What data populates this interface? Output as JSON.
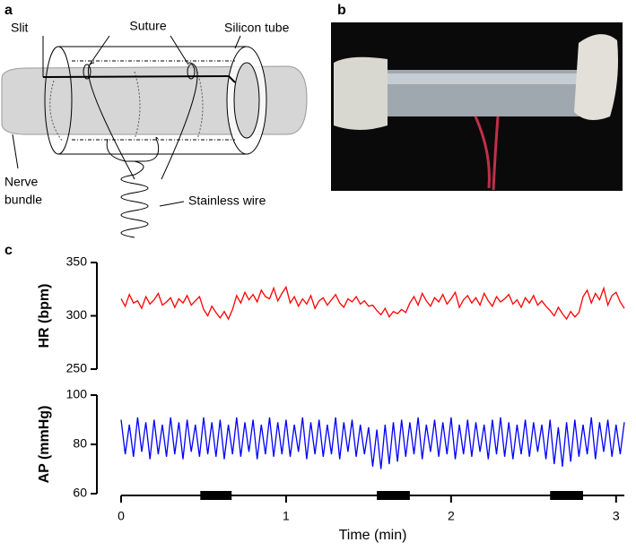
{
  "panels": {
    "a": {
      "label": "a",
      "labels": {
        "slit": "Slit",
        "suture": "Suture",
        "silicon_tube": "Silicon tube",
        "nerve_bundle": [
          "Nerve",
          "bundle"
        ],
        "stainless_wire": "Stainless wire"
      }
    },
    "b": {
      "label": "b"
    },
    "c": {
      "label": "c"
    }
  },
  "chart_data": [
    {
      "type": "line",
      "ylabel": "HR (bpm)",
      "color": "#ff0000",
      "ylim": [
        250,
        350
      ],
      "yticks": [
        250,
        300,
        350
      ],
      "xlim": [
        0,
        3.05
      ],
      "x": [
        0,
        0.025,
        0.05,
        0.075,
        0.1,
        0.125,
        0.15,
        0.175,
        0.2,
        0.225,
        0.25,
        0.275,
        0.3,
        0.325,
        0.35,
        0.375,
        0.4,
        0.425,
        0.45,
        0.475,
        0.5,
        0.525,
        0.55,
        0.575,
        0.6,
        0.625,
        0.65,
        0.675,
        0.7,
        0.725,
        0.75,
        0.775,
        0.8,
        0.825,
        0.85,
        0.875,
        0.9,
        0.925,
        0.95,
        0.975,
        1,
        1.025,
        1.05,
        1.075,
        1.1,
        1.125,
        1.15,
        1.175,
        1.2,
        1.225,
        1.25,
        1.275,
        1.3,
        1.325,
        1.35,
        1.375,
        1.4,
        1.425,
        1.45,
        1.475,
        1.5,
        1.525,
        1.55,
        1.575,
        1.6,
        1.625,
        1.65,
        1.675,
        1.7,
        1.725,
        1.75,
        1.775,
        1.8,
        1.825,
        1.85,
        1.875,
        1.9,
        1.925,
        1.95,
        1.975,
        2,
        2.025,
        2.05,
        2.075,
        2.1,
        2.125,
        2.15,
        2.175,
        2.2,
        2.225,
        2.25,
        2.275,
        2.3,
        2.325,
        2.35,
        2.375,
        2.4,
        2.425,
        2.45,
        2.475,
        2.5,
        2.525,
        2.55,
        2.575,
        2.6,
        2.625,
        2.65,
        2.675,
        2.7,
        2.725,
        2.75,
        2.775,
        2.8,
        2.825,
        2.85,
        2.875,
        2.9,
        2.925,
        2.95,
        2.975,
        3,
        3.025,
        3.05
      ],
      "values": [
        316,
        309,
        320,
        312,
        314,
        307,
        318,
        311,
        315,
        321,
        310,
        313,
        317,
        308,
        316,
        312,
        319,
        310,
        314,
        318,
        306,
        300,
        309,
        303,
        298,
        304,
        297,
        306,
        319,
        312,
        322,
        315,
        320,
        313,
        324,
        318,
        316,
        326,
        314,
        321,
        327,
        312,
        318,
        309,
        316,
        311,
        319,
        307,
        314,
        317,
        310,
        315,
        320,
        312,
        308,
        316,
        313,
        318,
        311,
        314,
        309,
        310,
        305,
        301,
        307,
        299,
        304,
        302,
        306,
        303,
        312,
        318,
        310,
        321,
        314,
        309,
        317,
        313,
        320,
        311,
        316,
        322,
        308,
        315,
        319,
        312,
        317,
        310,
        321,
        314,
        309,
        318,
        313,
        316,
        320,
        311,
        315,
        308,
        317,
        312,
        319,
        310,
        314,
        309,
        305,
        300,
        308,
        302,
        297,
        304,
        299,
        303,
        318,
        324,
        312,
        321,
        315,
        326,
        310,
        319,
        322,
        313,
        307
      ]
    },
    {
      "type": "line",
      "ylabel": "AP (mmHg)",
      "color": "#0000ff",
      "ylim": [
        60,
        100
      ],
      "yticks": [
        60,
        80,
        100
      ],
      "xlim": [
        0,
        3.05
      ],
      "xticks": [
        0,
        1,
        2,
        3
      ],
      "xlabel": "Time (min)",
      "stimulation": [
        [
          0.48,
          0.67
        ],
        [
          1.55,
          1.75
        ],
        [
          2.6,
          2.8
        ]
      ],
      "x": [
        0,
        0.025,
        0.05,
        0.075,
        0.1,
        0.125,
        0.15,
        0.175,
        0.2,
        0.225,
        0.25,
        0.275,
        0.3,
        0.325,
        0.35,
        0.375,
        0.4,
        0.425,
        0.45,
        0.475,
        0.5,
        0.525,
        0.55,
        0.575,
        0.6,
        0.625,
        0.65,
        0.675,
        0.7,
        0.725,
        0.75,
        0.775,
        0.8,
        0.825,
        0.85,
        0.875,
        0.9,
        0.925,
        0.95,
        0.975,
        1,
        1.025,
        1.05,
        1.075,
        1.1,
        1.125,
        1.15,
        1.175,
        1.2,
        1.225,
        1.25,
        1.275,
        1.3,
        1.325,
        1.35,
        1.375,
        1.4,
        1.425,
        1.45,
        1.475,
        1.5,
        1.525,
        1.55,
        1.575,
        1.6,
        1.625,
        1.65,
        1.675,
        1.7,
        1.725,
        1.75,
        1.775,
        1.8,
        1.825,
        1.85,
        1.875,
        1.9,
        1.925,
        1.95,
        1.975,
        2,
        2.025,
        2.05,
        2.075,
        2.1,
        2.125,
        2.15,
        2.175,
        2.2,
        2.225,
        2.25,
        2.275,
        2.3,
        2.325,
        2.35,
        2.375,
        2.4,
        2.425,
        2.45,
        2.475,
        2.5,
        2.525,
        2.55,
        2.575,
        2.6,
        2.625,
        2.65,
        2.675,
        2.7,
        2.725,
        2.75,
        2.775,
        2.8,
        2.825,
        2.85,
        2.875,
        2.9,
        2.925,
        2.95,
        2.975,
        3,
        3.025,
        3.05
      ],
      "values": [
        90,
        76,
        88,
        75,
        91,
        77,
        89,
        74,
        90,
        76,
        88,
        75,
        91,
        76,
        89,
        74,
        90,
        77,
        88,
        75,
        91,
        76,
        89,
        75,
        90,
        74,
        88,
        76,
        91,
        75,
        89,
        77,
        90,
        74,
        88,
        76,
        91,
        75,
        89,
        76,
        90,
        75,
        88,
        77,
        91,
        74,
        89,
        76,
        90,
        75,
        88,
        76,
        91,
        74,
        89,
        77,
        90,
        75,
        88,
        76,
        87,
        71,
        86,
        70,
        88,
        72,
        89,
        73,
        90,
        75,
        89,
        76,
        91,
        74,
        88,
        77,
        90,
        75,
        89,
        76,
        91,
        74,
        88,
        76,
        90,
        75,
        89,
        77,
        88,
        74,
        90,
        76,
        91,
        75,
        89,
        74,
        88,
        76,
        90,
        75,
        89,
        77,
        88,
        74,
        90,
        72,
        87,
        71,
        89,
        73,
        90,
        75,
        88,
        76,
        91,
        74,
        89,
        77,
        90,
        75,
        88,
        76,
        89
      ]
    }
  ]
}
